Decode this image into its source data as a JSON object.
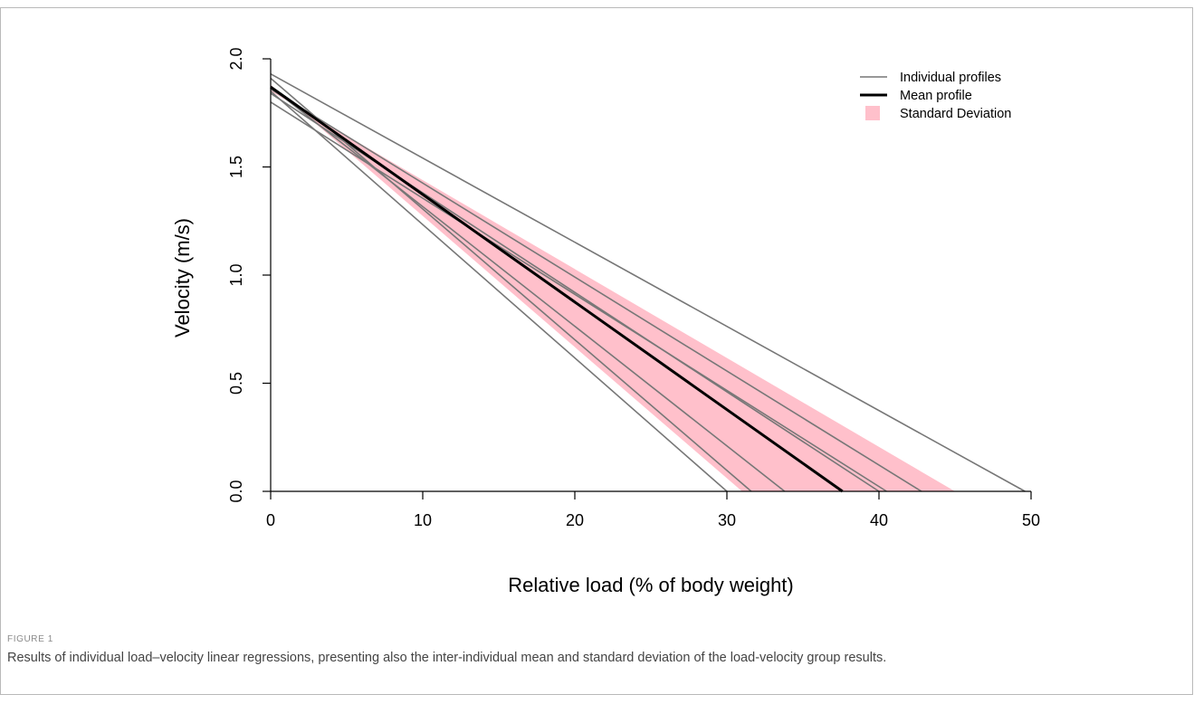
{
  "figure": {
    "label": "FIGURE 1",
    "caption": "Results of individual load–velocity linear regressions, presenting also the inter-individual mean and standard deviation of the load-velocity group results."
  },
  "chart_data": {
    "type": "line",
    "title": "",
    "xlabel": "Relative load (% of body weight)",
    "ylabel": "Velocity (m/s)",
    "xlim": [
      0,
      50
    ],
    "ylim": [
      0,
      2
    ],
    "x_ticks": [
      "0",
      "10",
      "20",
      "30",
      "40",
      "50"
    ],
    "y_ticks": [
      "0.0",
      "0.5",
      "1.0",
      "1.5",
      "2.0"
    ],
    "grid": false,
    "legend_position": "top-right",
    "legend": [
      {
        "label": "Individual profiles",
        "symbol": "thin-line",
        "color": "#777777"
      },
      {
        "label": "Mean profile",
        "symbol": "thick-line",
        "color": "#000000"
      },
      {
        "label": "Standard Deviation",
        "symbol": "square",
        "color": "#ffc0cb"
      }
    ],
    "series": [
      {
        "kind": "individual",
        "x": [
          0,
          30.0
        ],
        "y": [
          1.85,
          0
        ]
      },
      {
        "kind": "individual",
        "x": [
          0,
          31.6
        ],
        "y": [
          1.91,
          0
        ]
      },
      {
        "kind": "individual",
        "x": [
          0,
          33.8
        ],
        "y": [
          1.87,
          0
        ]
      },
      {
        "kind": "individual",
        "x": [
          0,
          40.0
        ],
        "y": [
          1.84,
          0
        ]
      },
      {
        "kind": "individual",
        "x": [
          0,
          40.5
        ],
        "y": [
          1.8,
          0
        ]
      },
      {
        "kind": "individual",
        "x": [
          0,
          42.8
        ],
        "y": [
          1.86,
          0
        ]
      },
      {
        "kind": "individual",
        "x": [
          0,
          49.6
        ],
        "y": [
          1.93,
          0
        ]
      },
      {
        "kind": "mean",
        "x": [
          0,
          37.6
        ],
        "y": [
          1.87,
          0
        ]
      }
    ],
    "sd_band": {
      "upper": {
        "x": [
          0,
          45.0
        ],
        "y": [
          1.85,
          0
        ]
      },
      "lower": {
        "x": [
          0,
          31.0
        ],
        "y": [
          1.88,
          0
        ]
      },
      "color": "#ffc0cb"
    }
  }
}
